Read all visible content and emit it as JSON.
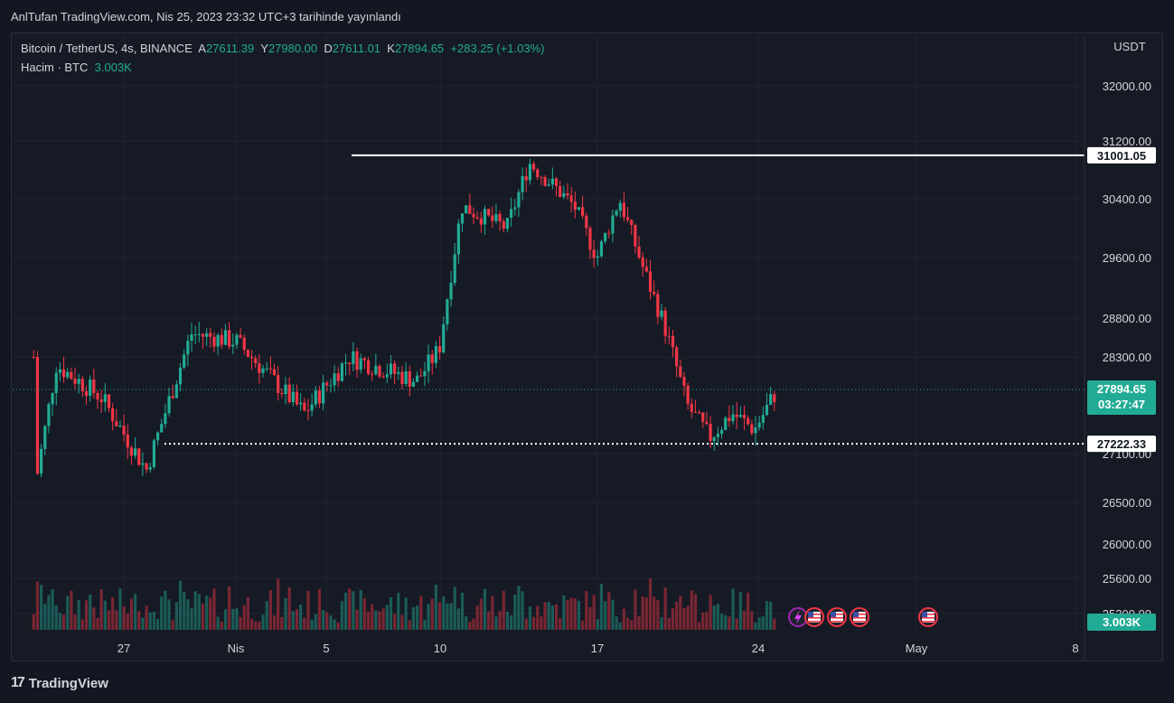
{
  "header": {
    "published": "AnlTufan TradingView.com, Nis 25, 2023 23:32 UTC+3 tarihinde yayınlandı"
  },
  "legend": {
    "symbol": "Bitcoin / TetherUS, 4s, BINANCE",
    "open_label": "A",
    "open": "27611.39",
    "high_label": "Y",
    "high": "27980.00",
    "low_label": "D",
    "low": "27611.01",
    "close_label": "K",
    "close": "27894.65",
    "change": "+283.25 (+1.03%)",
    "volume_label": "Hacim · BTC",
    "volume": "3.003K"
  },
  "footer": {
    "brand": "TradingView",
    "logo": "17"
  },
  "colors": {
    "up": "#22ab94",
    "down": "#f23645",
    "bg": "#161a25",
    "grid": "#1f2430",
    "line": "#ffffff"
  },
  "icons": [
    "lightning-icon",
    "us-flag-icon",
    "us-flag-icon",
    "us-flag-icon",
    "us-flag-icon"
  ],
  "chart_data": {
    "type": "candlestick",
    "currency_label": "USDT",
    "y_ticks": [
      "32000.00",
      "31200.00",
      "30400.00",
      "29600.00",
      "28800.00",
      "28300.00",
      "27100.00",
      "26500.00",
      "26000.00",
      "25600.00",
      "25200.00"
    ],
    "x_ticks": [
      "27",
      "Nis",
      "5",
      "10",
      "17",
      "24",
      "May",
      "8"
    ],
    "hlines": [
      {
        "value": 31001.05,
        "label": "31001.05",
        "style": "solid"
      },
      {
        "value": 27222.33,
        "label": "27222.33",
        "style": "dotted"
      }
    ],
    "last_price": "27894.65",
    "countdown": "03:27:47",
    "last_volume": "3.003K",
    "key_points": [
      {
        "date": "2023-03-23",
        "price": 28300
      },
      {
        "date": "2023-03-23",
        "price": 26600
      },
      {
        "date": "2023-03-24",
        "price": 28200
      },
      {
        "date": "2023-03-26",
        "price": 27800
      },
      {
        "date": "2023-03-28",
        "price": 26900
      },
      {
        "date": "2023-03-30",
        "price": 28600
      },
      {
        "date": "2023-04-01",
        "price": 28500
      },
      {
        "date": "2023-04-04",
        "price": 27600
      },
      {
        "date": "2023-04-06",
        "price": 28300
      },
      {
        "date": "2023-04-09",
        "price": 28000
      },
      {
        "date": "2023-04-10",
        "price": 28400
      },
      {
        "date": "2023-04-11",
        "price": 30300
      },
      {
        "date": "2023-04-13",
        "price": 30000
      },
      {
        "date": "2023-04-14",
        "price": 30900
      },
      {
        "date": "2023-04-16",
        "price": 30300
      },
      {
        "date": "2023-04-17",
        "price": 29600
      },
      {
        "date": "2023-04-18",
        "price": 30400
      },
      {
        "date": "2023-04-19",
        "price": 29500
      },
      {
        "date": "2023-04-20",
        "price": 28700
      },
      {
        "date": "2023-04-21",
        "price": 27700
      },
      {
        "date": "2023-04-22",
        "price": 27300
      },
      {
        "date": "2023-04-23",
        "price": 27600
      },
      {
        "date": "2023-04-24",
        "price": 27400
      },
      {
        "date": "2023-04-25",
        "price": 27894.65
      }
    ]
  }
}
